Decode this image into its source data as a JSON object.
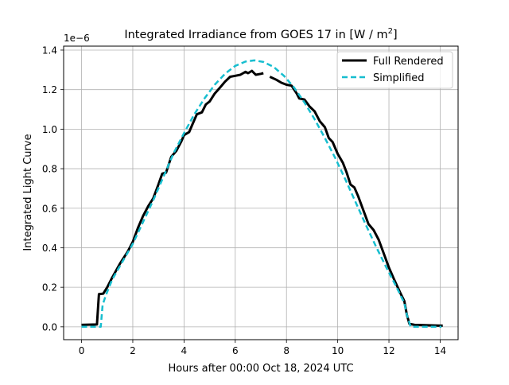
{
  "chart_data": {
    "type": "line",
    "title": "Integrated Irradiance from GOES 17 in [W / m",
    "title_superscript": "2",
    "title_suffix": "]",
    "xlabel": "Hours after 00:00 Oct 18, 2024 UTC",
    "ylabel": "Integrated Light Curve",
    "offset_label": "1e−6",
    "xlim": [
      -0.7,
      14.7
    ],
    "ylim": [
      -0.065,
      1.42
    ],
    "xticks": [
      0,
      2,
      4,
      6,
      8,
      10,
      12,
      14
    ],
    "xtick_labels": [
      "0",
      "2",
      "4",
      "6",
      "8",
      "10",
      "12",
      "14"
    ],
    "yticks": [
      0.0,
      0.2,
      0.4,
      0.6,
      0.8,
      1.0,
      1.2,
      1.4
    ],
    "ytick_labels": [
      "0.0",
      "0.2",
      "0.4",
      "0.6",
      "0.8",
      "1.0",
      "1.2",
      "1.4"
    ],
    "grid": true,
    "legend_position": "top-right",
    "series": [
      {
        "name": "Full Rendered",
        "color": "#000000",
        "style": "solid",
        "segments": [
          [
            [
              0.0,
              0.01
            ],
            [
              0.6,
              0.012
            ],
            [
              0.68,
              0.165
            ],
            [
              0.85,
              0.168
            ],
            [
              1.0,
              0.2
            ],
            [
              1.2,
              0.25
            ],
            [
              1.5,
              0.32
            ],
            [
              1.8,
              0.38
            ],
            [
              2.0,
              0.43
            ],
            [
              2.2,
              0.5
            ],
            [
              2.4,
              0.56
            ],
            [
              2.6,
              0.61
            ],
            [
              2.8,
              0.65
            ],
            [
              3.0,
              0.72
            ],
            [
              3.15,
              0.775
            ],
            [
              3.3,
              0.78
            ],
            [
              3.5,
              0.86
            ],
            [
              3.7,
              0.89
            ],
            [
              3.9,
              0.94
            ],
            [
              4.0,
              0.97
            ],
            [
              4.2,
              0.985
            ],
            [
              4.35,
              1.03
            ],
            [
              4.5,
              1.075
            ],
            [
              4.7,
              1.085
            ],
            [
              4.85,
              1.125
            ],
            [
              5.0,
              1.14
            ],
            [
              5.2,
              1.18
            ],
            [
              5.4,
              1.21
            ],
            [
              5.6,
              1.24
            ],
            [
              5.8,
              1.265
            ],
            [
              6.0,
              1.27
            ],
            [
              6.2,
              1.275
            ],
            [
              6.4,
              1.29
            ],
            [
              6.5,
              1.283
            ],
            [
              6.65,
              1.295
            ],
            [
              6.8,
              1.275
            ],
            [
              7.0,
              1.28
            ],
            [
              7.1,
              1.283
            ]
          ],
          [
            [
              7.35,
              1.265
            ],
            [
              7.6,
              1.25
            ],
            [
              7.8,
              1.235
            ],
            [
              8.0,
              1.225
            ],
            [
              8.2,
              1.22
            ],
            [
              8.4,
              1.18
            ],
            [
              8.5,
              1.155
            ],
            [
              8.7,
              1.15
            ],
            [
              8.9,
              1.115
            ],
            [
              9.1,
              1.09
            ],
            [
              9.3,
              1.04
            ],
            [
              9.5,
              1.01
            ],
            [
              9.65,
              0.955
            ],
            [
              9.8,
              0.935
            ],
            [
              10.0,
              0.875
            ],
            [
              10.2,
              0.83
            ],
            [
              10.35,
              0.78
            ],
            [
              10.5,
              0.72
            ],
            [
              10.65,
              0.705
            ],
            [
              10.8,
              0.66
            ],
            [
              11.0,
              0.59
            ],
            [
              11.2,
              0.52
            ],
            [
              11.4,
              0.49
            ],
            [
              11.6,
              0.44
            ],
            [
              11.8,
              0.37
            ],
            [
              12.0,
              0.3
            ],
            [
              12.2,
              0.24
            ],
            [
              12.45,
              0.17
            ],
            [
              12.6,
              0.13
            ],
            [
              12.7,
              0.06
            ],
            [
              12.8,
              0.015
            ],
            [
              13.0,
              0.01
            ],
            [
              13.5,
              0.008
            ],
            [
              14.0,
              0.006
            ],
            [
              14.1,
              0.006
            ]
          ]
        ]
      },
      {
        "name": "Simplified",
        "color": "#17becf",
        "style": "dashed",
        "segments": [
          [
            [
              0.0,
              0.0
            ],
            [
              0.65,
              0.0
            ],
            [
              0.75,
              0.0
            ],
            [
              0.82,
              0.11
            ],
            [
              0.95,
              0.16
            ],
            [
              1.2,
              0.24
            ],
            [
              1.6,
              0.33
            ],
            [
              2.0,
              0.42
            ],
            [
              2.4,
              0.53
            ],
            [
              2.8,
              0.64
            ],
            [
              3.2,
              0.76
            ],
            [
              3.6,
              0.88
            ],
            [
              4.0,
              0.98
            ],
            [
              4.4,
              1.075
            ],
            [
              4.8,
              1.155
            ],
            [
              5.2,
              1.225
            ],
            [
              5.6,
              1.28
            ],
            [
              6.0,
              1.32
            ],
            [
              6.4,
              1.342
            ],
            [
              6.75,
              1.348
            ],
            [
              7.1,
              1.34
            ],
            [
              7.5,
              1.315
            ],
            [
              7.9,
              1.27
            ],
            [
              8.3,
              1.21
            ],
            [
              8.7,
              1.135
            ],
            [
              9.1,
              1.05
            ],
            [
              9.5,
              0.955
            ],
            [
              9.9,
              0.855
            ],
            [
              10.3,
              0.745
            ],
            [
              10.7,
              0.63
            ],
            [
              11.1,
              0.515
            ],
            [
              11.5,
              0.405
            ],
            [
              11.9,
              0.3
            ],
            [
              12.3,
              0.2
            ],
            [
              12.6,
              0.12
            ],
            [
              12.7,
              0.06
            ],
            [
              12.85,
              0.0
            ],
            [
              13.5,
              0.0
            ],
            [
              14.05,
              0.0
            ]
          ]
        ]
      }
    ]
  }
}
